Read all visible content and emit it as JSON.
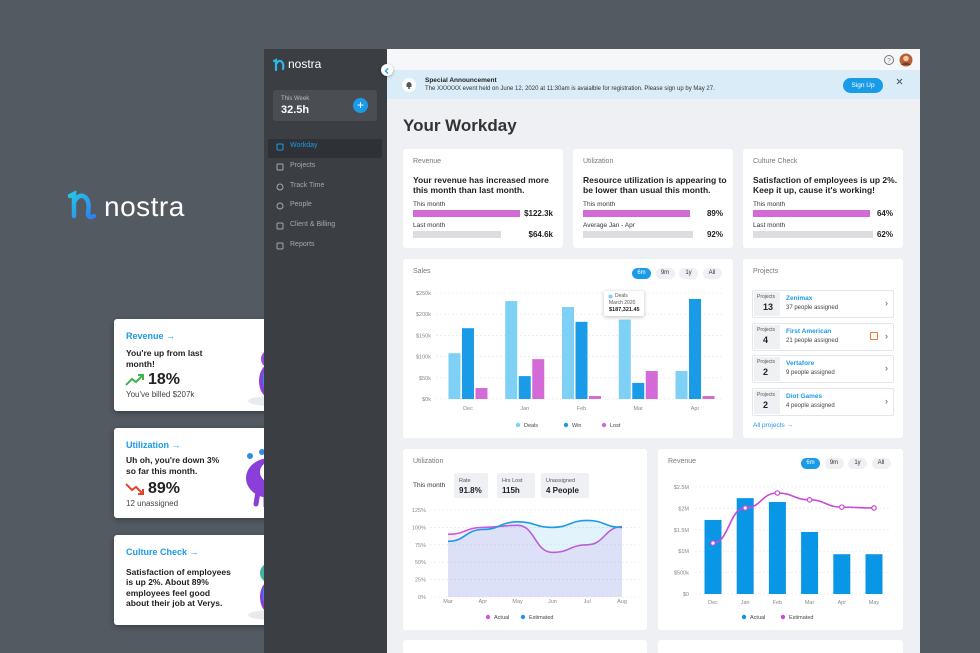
{
  "brand": "nostra",
  "promo_cards": [
    {
      "title": "Revenue →",
      "text": "You're up from last month!",
      "stat": "18%",
      "note": "You've billed $207k"
    },
    {
      "title": "Utilization →",
      "text": "Uh oh, you're down 3% so far this month.",
      "stat": "89%",
      "note": "12 unassigned"
    },
    {
      "title": "Culture Check →",
      "text": "Satisfaction of employees is up 2%. About 89% employees feel good about their job at Verys."
    }
  ],
  "sidebar": {
    "brand": "nostra",
    "week_label": "This Week",
    "week_value": "32.5h",
    "menu": [
      "Workday",
      "Projects",
      "Track Time",
      "People",
      "Client & Billing",
      "Reports"
    ]
  },
  "announcement": {
    "title": "Special Announcement",
    "message": "The XXXXXX event held on June 12, 2020 at 11:30am is avaialble for registration. Please sign up by May 27.",
    "button": "Sign Up"
  },
  "page_title": "Your Workday",
  "kpis": [
    {
      "title": "Revenue",
      "text": "Your revenue has increased more this month than last month.",
      "rows": [
        {
          "label": "This month",
          "value": "$122.3k"
        },
        {
          "label": "Last month",
          "value": "$64.6k"
        }
      ]
    },
    {
      "title": "Utilization",
      "text": "Resource utilization is appearing to be lower than usual this month.",
      "rows": [
        {
          "label": "This month",
          "value": "89%"
        },
        {
          "label": "Average Jan - Apr",
          "value": "92%"
        }
      ]
    },
    {
      "title": "Culture Check",
      "text": "Satisfaction of employees is up 2%. Keep it up, cause it's working!",
      "rows": [
        {
          "label": "This month",
          "value": "64%"
        },
        {
          "label": "Last month",
          "value": "62%"
        }
      ]
    }
  ],
  "projects": {
    "title": "Projects",
    "items": [
      {
        "label": "Projects",
        "count": 13,
        "name": "Zenimax",
        "note": "37 people assigned"
      },
      {
        "label": "Projects",
        "count": 4,
        "name": "First American",
        "note": "21 people assigned"
      },
      {
        "label": "Projects",
        "count": 2,
        "name": "Vertafore",
        "note": "9 people assigned"
      },
      {
        "label": "Projects",
        "count": 2,
        "name": "Diot Games",
        "note": "4 people assigned"
      }
    ],
    "link": "All projects →"
  },
  "chart_data": [
    {
      "type": "bar",
      "title": "Sales",
      "ranges": [
        "6m",
        "9m",
        "1y",
        "All"
      ],
      "categories": [
        "Dec",
        "Jan",
        "Feb",
        "Mar",
        "Apr"
      ],
      "series": [
        {
          "name": "Deals",
          "color": "#7fd0f5",
          "values": [
            108,
            231,
            217,
            187.32145,
            66
          ]
        },
        {
          "name": "Win",
          "color": "#1a9be8",
          "values": [
            167,
            54,
            182,
            38,
            236
          ]
        },
        {
          "name": "Lost",
          "color": "#d46ad6",
          "values": [
            26,
            94,
            7,
            66,
            7
          ]
        }
      ],
      "ylim": [
        0,
        250
      ],
      "yticks": [
        {
          "value": 0,
          "label": "$0k"
        },
        {
          "value": 50,
          "label": "$50k"
        },
        {
          "value": 100,
          "label": "$100k"
        },
        {
          "value": 150,
          "label": "$150k"
        },
        {
          "value": 200,
          "label": "$200k"
        },
        {
          "value": 250,
          "label": "$250k"
        }
      ],
      "grid": true,
      "tooltip": {
        "series": "Deals",
        "date": "March 2020",
        "value": "$187,321.45"
      }
    },
    {
      "type": "line",
      "title": "Utilization",
      "period": "This month",
      "stats": [
        {
          "label": "Rate",
          "value": "91.8%"
        },
        {
          "label": "Hrs Lost",
          "value": "115h"
        },
        {
          "label": "Unassigned",
          "value": "4 People"
        }
      ],
      "categories": [
        "Mar",
        "Apr",
        "May",
        "Jun",
        "Jul",
        "Aug"
      ],
      "series": [
        {
          "name": "Actual",
          "color": "#d157d8",
          "values": [
            90,
            100,
            103,
            64,
            75,
            101
          ]
        },
        {
          "name": "Estimated",
          "color": "#1a9be8",
          "values": [
            80,
            97,
            108,
            100,
            110,
            100
          ]
        }
      ],
      "ylim": [
        0,
        125
      ],
      "yticks": [
        {
          "value": 0,
          "label": "0%"
        },
        {
          "value": 25,
          "label": "25%"
        },
        {
          "value": 50,
          "label": "50%"
        },
        {
          "value": 75,
          "label": "75%"
        },
        {
          "value": 100,
          "label": "100%"
        },
        {
          "value": 125,
          "label": "125%"
        }
      ],
      "grid": true
    },
    {
      "type": "combo",
      "title": "Revenue",
      "ranges": [
        "6m",
        "9m",
        "1y",
        "All"
      ],
      "categories": [
        "Dec",
        "Jan",
        "Feb",
        "Mar",
        "Apr",
        "May"
      ],
      "series": [
        {
          "name": "Actual",
          "type": "bar",
          "color": "#0a96e6",
          "values": [
            1730000,
            2240000,
            2150000,
            1450000,
            930000,
            930000
          ]
        },
        {
          "name": "Estimated",
          "type": "line",
          "color": "#c84bd6",
          "values": [
            1190000,
            2010000,
            2360000,
            2200000,
            2030000,
            2010000
          ]
        }
      ],
      "ylim": [
        0,
        2500000
      ],
      "yticks": [
        {
          "value": 0,
          "label": "$0"
        },
        {
          "value": 500000,
          "label": "$500k"
        },
        {
          "value": 1000000,
          "label": "$1M"
        },
        {
          "value": 1500000,
          "label": "$1.5M"
        },
        {
          "value": 2000000,
          "label": "$2M"
        },
        {
          "value": 2500000,
          "label": "$2.5M"
        }
      ],
      "grid": true
    }
  ]
}
